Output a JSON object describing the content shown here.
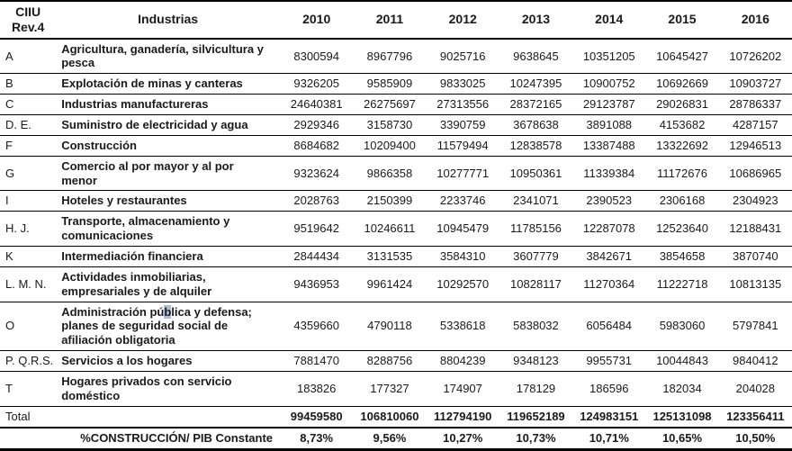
{
  "table": {
    "selection_color": "#a4c1dd",
    "header": {
      "code_line1": "CIIU",
      "code_line2": "Rev.4",
      "industry": "Industrias",
      "years": [
        "2010",
        "2011",
        "2012",
        "2013",
        "2014",
        "2015",
        "2016"
      ]
    },
    "rows": [
      {
        "code": "A",
        "name": "Agricultura, ganadería, silvicultura y pesca",
        "values": [
          "8300594",
          "8967796",
          "9025716",
          "9638645",
          "10351205",
          "10645427",
          "10726202"
        ]
      },
      {
        "code": "B",
        "name": "Explotación de minas y canteras",
        "values": [
          "9326205",
          "9585909",
          "9833025",
          "10247395",
          "10900752",
          "10692669",
          "10903727"
        ]
      },
      {
        "code": "C",
        "name": "Industrias manufactureras",
        "values": [
          "24640381",
          "26275697",
          "27313556",
          "28372165",
          "29123787",
          "29026831",
          "28786337"
        ]
      },
      {
        "code": "D. E.",
        "name": "Suministro de electricidad y agua",
        "values": [
          "2929346",
          "3158730",
          "3390759",
          "3678638",
          "3891088",
          "4153682",
          "4287157"
        ]
      },
      {
        "code": "F",
        "name": "Construcción",
        "values": [
          "8684682",
          "10209400",
          "11579494",
          "12838578",
          "13387488",
          "13322692",
          "12946513"
        ]
      },
      {
        "code": "G",
        "name": "Comercio al por mayor y al por menor",
        "values": [
          "9323624",
          "9866358",
          "10277771",
          "10950361",
          "11339384",
          "11172676",
          "10686965"
        ]
      },
      {
        "code": "I",
        "name": "Hoteles y restaurantes",
        "values": [
          "2028763",
          "2150399",
          "2233746",
          "2341071",
          "2390523",
          "2306168",
          "2304923"
        ]
      },
      {
        "code": "H. J.",
        "name": "Transporte, almacenamiento y comunicaciones",
        "values": [
          "9519642",
          "10246611",
          "10945479",
          "11785156",
          "12287078",
          "12523640",
          "12188431"
        ]
      },
      {
        "code": "K",
        "name": "Intermediación financiera",
        "values": [
          "2844434",
          "3131535",
          "3584310",
          "3607779",
          "3842671",
          "3854658",
          "3870740"
        ]
      },
      {
        "code": "L. M. N.",
        "name": "Actividades inmobiliarias, empresariales y de alquiler",
        "values": [
          "9436953",
          "9961424",
          "10292570",
          "10828117",
          "11270364",
          "11222718",
          "10813135"
        ]
      },
      {
        "code": "O",
        "name": "Administración pública y defensa; planes de seguridad social de afiliación obligatoria",
        "name_segments": [
          {
            "text": "Administración pú",
            "highlight": false
          },
          {
            "text": "b",
            "highlight": true
          },
          {
            "text": "lica y defensa; planes de seguridad social de afiliación obligatoria",
            "highlight": false
          }
        ],
        "values": [
          "4359660",
          "4790118",
          "5338618",
          "5838032",
          "6056484",
          "5983060",
          "5797841"
        ]
      },
      {
        "code": "P. Q.R.S.",
        "name": "Servicios a los hogares",
        "values": [
          "7881470",
          "8288756",
          "8804239",
          "9348123",
          "9955731",
          "10044843",
          "9840412"
        ]
      },
      {
        "code": "T",
        "name": "Hogares privados con servicio doméstico",
        "values": [
          "183826",
          "177327",
          "174907",
          "178129",
          "186596",
          "182034",
          "204028"
        ]
      }
    ],
    "total": {
      "label": "Total",
      "values": [
        "99459580",
        "106810060",
        "112794190",
        "119652189",
        "124983151",
        "125131098",
        "123356411"
      ]
    },
    "pct": {
      "label": "%CONSTRUCCIÓN/ PIB Constante",
      "values": [
        "8,73%",
        "9,56%",
        "10,27%",
        "10,73%",
        "10,71%",
        "10,65%",
        "10,50%"
      ]
    }
  }
}
